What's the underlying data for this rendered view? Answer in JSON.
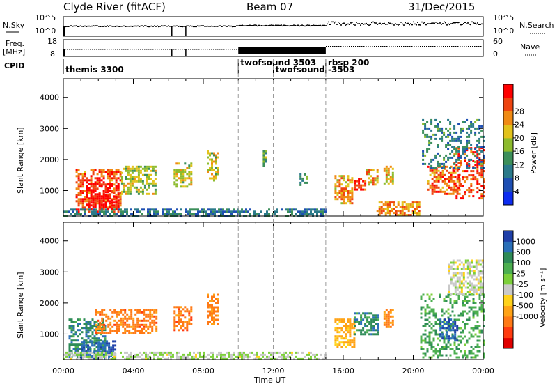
{
  "header": {
    "station": "Clyde River (fitACF)",
    "beam": "Beam 07",
    "date": "31/Dec/2015"
  },
  "strips": {
    "nsky_label": "N.Sky",
    "nsky_ticks": [
      "10^5",
      "10^0"
    ],
    "nsearch_label": "N.Search",
    "nsearch_ticks": [
      "10^5",
      "10^0"
    ],
    "freq_label_1": "Freq.",
    "freq_label_2": "[MHz]",
    "freq_ticks": [
      "18",
      "8"
    ],
    "nave_label": "Nave",
    "nave_ticks": [
      "60",
      "0"
    ],
    "cpid_label": "CPID"
  },
  "modes": [
    {
      "name": "themis 3300",
      "start": 0.0
    },
    {
      "name": "twofsound 3503",
      "start": 10.0
    },
    {
      "name": "twofsound -3503",
      "start": 12.0
    },
    {
      "name": "rbsp 200",
      "start": 15.0
    }
  ],
  "x_axis": {
    "label": "Time UT",
    "ticks": [
      "00:00",
      "04:00",
      "08:00",
      "12:00",
      "16:00",
      "20:00",
      "00:00"
    ]
  },
  "y_axis": {
    "label": "Slant Range [km]",
    "ticks": [
      "1000",
      "2000",
      "3000",
      "4000"
    ]
  },
  "power_scale": {
    "label": "Power [dB]",
    "ticks": [
      "4",
      "8",
      "12",
      "16",
      "20",
      "24",
      "28"
    ],
    "colors": [
      "#0d2cf0",
      "#1e4fb3",
      "#2b7a8a",
      "#3c8f5a",
      "#8dbb2d",
      "#e2c21b",
      "#f08a14",
      "#ee4410",
      "#ff0000"
    ]
  },
  "velocity_scale": {
    "label": "Velocity [m s⁻¹]",
    "ticks": [
      "1000",
      "500",
      "100",
      "25",
      "-25",
      "-100",
      "-500",
      "-1000"
    ],
    "colors": [
      "#1f3fa8",
      "#2a6fb8",
      "#2e8b57",
      "#4caf50",
      "#7ccf3a",
      "#c9c9c9",
      "#ffd21a",
      "#ffa316",
      "#ff7a16",
      "#ff3b10",
      "#e00000"
    ]
  },
  "chart_data": [
    {
      "type": "heatmap",
      "name": "power",
      "x_unit": "hours UT",
      "y_unit": "km",
      "xlim": [
        0,
        24
      ],
      "ylim": [
        180,
        4600
      ],
      "colorbar": {
        "min": 0,
        "max": 32,
        "unit": "dB"
      },
      "blobs": [
        {
          "t0": 0.7,
          "t1": 3.3,
          "r0": 300,
          "r1": 1700,
          "v": 26
        },
        {
          "t0": 1.3,
          "t1": 3.1,
          "r0": 400,
          "r1": 1250,
          "v": 31
        },
        {
          "t0": 3.3,
          "t1": 5.3,
          "r0": 900,
          "r1": 1800,
          "v": 17
        },
        {
          "t0": 6.3,
          "t1": 7.3,
          "r0": 1150,
          "r1": 1900,
          "v": 19
        },
        {
          "t0": 8.2,
          "t1": 8.9,
          "r0": 1350,
          "r1": 2300,
          "v": 18
        },
        {
          "t0": 0.0,
          "t1": 15.0,
          "r0": 200,
          "r1": 420,
          "v": 9
        },
        {
          "t0": 11.4,
          "t1": 11.6,
          "r0": 1800,
          "r1": 2300,
          "v": 14
        },
        {
          "t0": 13.5,
          "t1": 13.9,
          "r0": 1150,
          "r1": 1550,
          "v": 12
        },
        {
          "t0": 15.5,
          "t1": 16.5,
          "r0": 600,
          "r1": 1500,
          "v": 22
        },
        {
          "t0": 16.6,
          "t1": 17.3,
          "r0": 1000,
          "r1": 1400,
          "v": 29
        },
        {
          "t0": 17.3,
          "t1": 18.0,
          "r0": 1200,
          "r1": 1700,
          "v": 22
        },
        {
          "t0": 18.3,
          "t1": 18.8,
          "r0": 1200,
          "r1": 1800,
          "v": 21
        },
        {
          "t0": 17.9,
          "t1": 20.3,
          "r0": 200,
          "r1": 650,
          "v": 23
        },
        {
          "t0": 20.8,
          "t1": 22.7,
          "r0": 900,
          "r1": 1800,
          "v": 25
        },
        {
          "t0": 22.3,
          "t1": 24.0,
          "r0": 750,
          "r1": 2400,
          "v": 27
        },
        {
          "t0": 20.5,
          "t1": 24.0,
          "r0": 1700,
          "r1": 3300,
          "v": 10
        }
      ]
    },
    {
      "type": "heatmap",
      "name": "velocity",
      "x_unit": "hours UT",
      "y_unit": "km",
      "xlim": [
        0,
        24
      ],
      "ylim": [
        180,
        4600
      ],
      "colorbar": {
        "min": -1000,
        "max": 1000,
        "unit": "m/s"
      },
      "blobs": [
        {
          "t0": 0.3,
          "t1": 2.4,
          "r0": 250,
          "r1": 1500,
          "v": 400
        },
        {
          "t0": 1.8,
          "t1": 5.3,
          "r0": 1000,
          "r1": 1800,
          "v": -350
        },
        {
          "t0": 1.0,
          "t1": 3.0,
          "r0": 200,
          "r1": 800,
          "v": 900
        },
        {
          "t0": 6.3,
          "t1": 7.3,
          "r0": 1150,
          "r1": 1900,
          "v": -380
        },
        {
          "t0": 8.2,
          "t1": 8.9,
          "r0": 1350,
          "r1": 2300,
          "v": -300
        },
        {
          "t0": 0.0,
          "t1": 15.0,
          "r0": 200,
          "r1": 430,
          "v": 20
        },
        {
          "t0": 15.5,
          "t1": 16.6,
          "r0": 600,
          "r1": 1500,
          "v": -150
        },
        {
          "t0": 16.6,
          "t1": 18.0,
          "r0": 1000,
          "r1": 1700,
          "v": 400
        },
        {
          "t0": 18.3,
          "t1": 18.8,
          "r0": 1200,
          "r1": 1800,
          "v": -300
        },
        {
          "t0": 20.4,
          "t1": 24.0,
          "r0": 250,
          "r1": 2300,
          "v": 200
        },
        {
          "t0": 21.5,
          "t1": 22.5,
          "r0": 800,
          "r1": 1500,
          "v": 900
        },
        {
          "t0": 22.0,
          "t1": 24.0,
          "r0": 2300,
          "r1": 3400,
          "v": 0
        }
      ]
    }
  ]
}
